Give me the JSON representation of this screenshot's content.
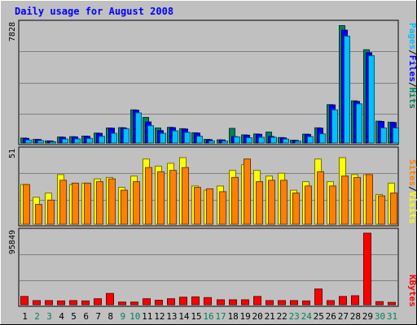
{
  "title": "Daily usage for August 2008",
  "right_labels": {
    "top": {
      "pages": "Pages",
      "files": "Files",
      "hits": "Hits",
      "sep": "/"
    },
    "middle": {
      "sites": "Sites",
      "visits": "Visits",
      "sep": "/"
    },
    "bottom": {
      "kbytes": "KBytes"
    }
  },
  "colors": {
    "background": "#c0c0c0",
    "hits": "#00805c",
    "files": "#0000ff",
    "pages": "#00c0ff",
    "visits": "#ffff00",
    "sites": "#ff8000",
    "kbytes": "#ff0000",
    "title": "#0000ff",
    "weekday": "#000000",
    "weekend": "#00805c"
  },
  "chart_data": [
    {
      "type": "bar",
      "title": "Daily usage for August 2008",
      "ymax_label": "7828",
      "ylim": [
        0,
        7828
      ],
      "categories": [
        "1",
        "2",
        "3",
        "4",
        "5",
        "6",
        "7",
        "8",
        "9",
        "10",
        "11",
        "12",
        "13",
        "14",
        "15",
        "16",
        "17",
        "18",
        "19",
        "20",
        "21",
        "22",
        "23",
        "24",
        "25",
        "26",
        "27",
        "28",
        "29",
        "30",
        "31"
      ],
      "weekend_days": [
        "2",
        "3",
        "9",
        "10",
        "16",
        "17",
        "23",
        "24",
        "30",
        "31"
      ],
      "series": [
        {
          "name": "Hits",
          "values": [
            330,
            240,
            140,
            400,
            420,
            460,
            660,
            1000,
            1020,
            2200,
            1700,
            1000,
            1040,
            950,
            680,
            240,
            210,
            970,
            540,
            600,
            730,
            360,
            190,
            590,
            1010,
            2550,
            7800,
            2800,
            6200,
            1450,
            1380
          ]
        },
        {
          "name": "Files",
          "values": [
            310,
            230,
            130,
            380,
            400,
            440,
            640,
            980,
            1000,
            2180,
            1400,
            820,
            1020,
            930,
            660,
            220,
            200,
            420,
            520,
            580,
            430,
            340,
            170,
            570,
            990,
            2530,
            7500,
            2760,
            6000,
            1430,
            1360
          ]
        },
        {
          "name": "Pages",
          "values": [
            200,
            160,
            80,
            260,
            270,
            300,
            440,
            640,
            940,
            2000,
            1150,
            640,
            810,
            700,
            450,
            140,
            130,
            400,
            350,
            380,
            380,
            260,
            120,
            420,
            610,
            2200,
            7100,
            2600,
            5800,
            1000,
            1000
          ]
        }
      ]
    },
    {
      "type": "bar",
      "ymax_label": "51",
      "ylim": [
        0,
        51
      ],
      "categories": [
        "1",
        "2",
        "3",
        "4",
        "5",
        "6",
        "7",
        "8",
        "9",
        "10",
        "11",
        "12",
        "13",
        "14",
        "15",
        "16",
        "17",
        "18",
        "19",
        "20",
        "21",
        "22",
        "23",
        "24",
        "25",
        "26",
        "27",
        "28",
        "29",
        "30",
        "31"
      ],
      "series": [
        {
          "name": "Visits",
          "values": [
            28,
            19,
            22,
            35,
            28,
            29,
            32,
            33,
            26,
            34,
            46,
            41,
            43,
            47,
            27,
            24,
            27,
            38,
            42,
            38,
            34,
            36,
            24,
            30,
            46,
            30,
            47,
            35,
            35,
            21,
            29
          ]
        },
        {
          "name": "Sites",
          "values": [
            28,
            14,
            17,
            31,
            29,
            29,
            30,
            32,
            24,
            30,
            40,
            37,
            38,
            40,
            26,
            25,
            23,
            33,
            46,
            30,
            31,
            31,
            22,
            27,
            37,
            27,
            34,
            33,
            35,
            20,
            22
          ]
        }
      ]
    },
    {
      "type": "bar",
      "ymax_label": "95849",
      "ylim": [
        0,
        95849
      ],
      "categories": [
        "1",
        "2",
        "3",
        "4",
        "5",
        "6",
        "7",
        "8",
        "9",
        "10",
        "11",
        "12",
        "13",
        "14",
        "15",
        "16",
        "17",
        "18",
        "19",
        "20",
        "21",
        "22",
        "23",
        "24",
        "25",
        "26",
        "27",
        "28",
        "29",
        "30",
        "31"
      ],
      "series": [
        {
          "name": "KBytes",
          "values": [
            11000,
            5500,
            5500,
            5000,
            5500,
            5000,
            8000,
            15000,
            3500,
            3500,
            8000,
            6000,
            8000,
            10000,
            10500,
            9500,
            6500,
            6500,
            6500,
            11000,
            5500,
            5500,
            5500,
            5000,
            21000,
            5500,
            11000,
            12000,
            95849,
            4000,
            3000
          ]
        }
      ]
    }
  ]
}
